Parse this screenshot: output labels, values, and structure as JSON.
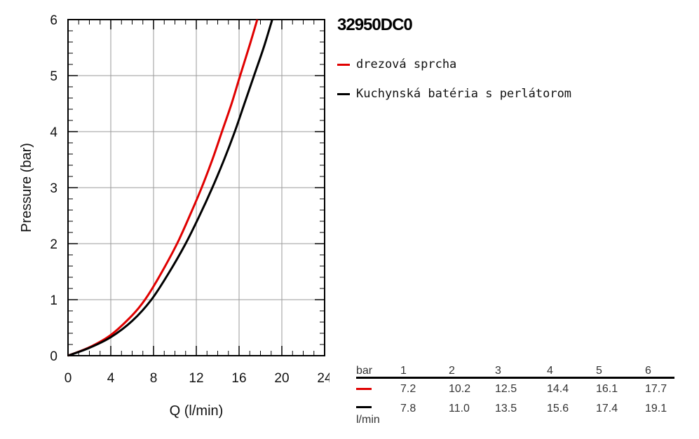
{
  "title": "32950DC0",
  "colors": {
    "series1": "#e00000",
    "series2": "#000000",
    "grid": "#9a9a9a"
  },
  "legend": [
    {
      "label": "drezová sprcha",
      "color": "#e00000"
    },
    {
      "label": "Kuchynská batéria s perlátorom",
      "color": "#000000"
    }
  ],
  "chart_data": {
    "type": "line",
    "title": "32950DC0",
    "xlabel": "Q (l/min)",
    "ylabel": "Pressure (bar)",
    "xlim": [
      0,
      24
    ],
    "ylim": [
      0,
      6
    ],
    "xticks": [
      0,
      4,
      8,
      12,
      16,
      20,
      24
    ],
    "yticks": [
      0,
      1,
      2,
      3,
      4,
      5,
      6
    ],
    "grid": true,
    "legend_position": "right",
    "series": [
      {
        "name": "drezová sprcha",
        "color": "#e00000",
        "x": [
          0,
          2,
          4,
          6,
          7.2,
          8.5,
          10.2,
          11.5,
          12.5,
          13.5,
          14.4,
          15.3,
          16.1,
          17,
          17.7
        ],
        "y": [
          0,
          0.15,
          0.37,
          0.72,
          1,
          1.4,
          2,
          2.55,
          3,
          3.5,
          4,
          4.5,
          5,
          5.55,
          6
        ]
      },
      {
        "name": "Kuchynská batéria s perlátorom",
        "color": "#000000",
        "x": [
          0,
          2,
          4,
          6,
          7.8,
          9.5,
          11,
          12.3,
          13.5,
          14.6,
          15.6,
          16.5,
          17.4,
          18.3,
          19.1
        ],
        "y": [
          0,
          0.14,
          0.33,
          0.62,
          1,
          1.5,
          2,
          2.5,
          3,
          3.5,
          4,
          4.5,
          5,
          5.5,
          6
        ]
      }
    ]
  },
  "table": {
    "header_label": "bar",
    "unit_label": "l/min",
    "pressures": [
      "1",
      "2",
      "3",
      "4",
      "5",
      "6"
    ],
    "rows": [
      {
        "color": "#e00000",
        "values": [
          "7.2",
          "10.2",
          "12.5",
          "14.4",
          "16.1",
          "17.7"
        ]
      },
      {
        "color": "#000000",
        "values": [
          "7.8",
          "11.0",
          "13.5",
          "15.6",
          "17.4",
          "19.1"
        ]
      }
    ]
  }
}
